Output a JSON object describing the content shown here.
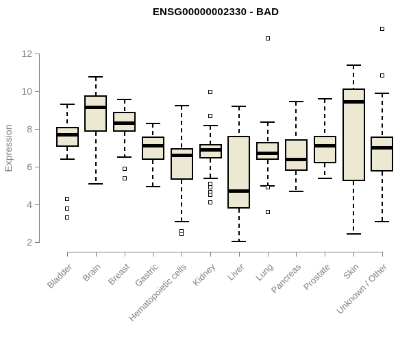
{
  "chart_data": {
    "type": "boxplot",
    "title": "ENSG00000002330 - BAD",
    "ylabel": "Expression",
    "xlabel": "",
    "y_ticks": [
      2,
      4,
      6,
      8,
      10,
      12
    ],
    "ylim": [
      2,
      13.4
    ],
    "grid": false,
    "legend": "none",
    "colors": {
      "box_fill": "#ECE8D1",
      "box_border": "#000000",
      "axis": "#7f7f7f",
      "title_text": "#000000",
      "background": "#ffffff"
    },
    "categories": [
      "Bladder",
      "Brain",
      "Breast",
      "Gastric",
      "Hematopoietic cells",
      "Kidney",
      "Liver",
      "Lung",
      "Pancreas",
      "Prostate",
      "Skin",
      "Unknown / Other"
    ],
    "boxes": [
      {
        "category": "Bladder",
        "whisker_low": 6.4,
        "q1": 7.05,
        "median": 7.7,
        "q3": 8.1,
        "whisker_high": 9.3,
        "outliers": [
          4.3,
          3.8,
          3.3
        ]
      },
      {
        "category": "Brain",
        "whisker_low": 5.1,
        "q1": 7.85,
        "median": 9.15,
        "q3": 9.8,
        "whisker_high": 10.75,
        "outliers": []
      },
      {
        "category": "Breast",
        "whisker_low": 6.5,
        "q1": 7.85,
        "median": 8.3,
        "q3": 8.9,
        "whisker_high": 9.55,
        "outliers": [
          5.9,
          5.4
        ]
      },
      {
        "category": "Gastric",
        "whisker_low": 4.95,
        "q1": 6.35,
        "median": 7.1,
        "q3": 7.6,
        "whisker_high": 8.3,
        "outliers": []
      },
      {
        "category": "Hematopoietic cells",
        "whisker_low": 3.1,
        "q1": 5.3,
        "median": 6.6,
        "q3": 7.0,
        "whisker_high": 9.25,
        "outliers": [
          2.6,
          2.45
        ]
      },
      {
        "category": "Kidney",
        "whisker_low": 5.4,
        "q1": 6.45,
        "median": 6.9,
        "q3": 7.2,
        "whisker_high": 8.2,
        "outliers": [
          9.95,
          8.7,
          5.1,
          4.9,
          4.65,
          4.5,
          4.1
        ]
      },
      {
        "category": "Liver",
        "whisker_low": 2.05,
        "q1": 3.8,
        "median": 4.7,
        "q3": 7.65,
        "whisker_high": 9.2,
        "outliers": []
      },
      {
        "category": "Lung",
        "whisker_low": 5.0,
        "q1": 6.35,
        "median": 6.7,
        "q3": 7.3,
        "whisker_high": 8.35,
        "outliers": [
          12.8,
          4.9,
          3.6
        ]
      },
      {
        "category": "Pancreas",
        "whisker_low": 4.7,
        "q1": 5.8,
        "median": 6.4,
        "q3": 7.45,
        "whisker_high": 9.45,
        "outliers": []
      },
      {
        "category": "Prostate",
        "whisker_low": 5.4,
        "q1": 6.2,
        "median": 7.1,
        "q3": 7.65,
        "whisker_high": 9.6,
        "outliers": []
      },
      {
        "category": "Skin",
        "whisker_low": 2.45,
        "q1": 5.25,
        "median": 9.45,
        "q3": 10.15,
        "whisker_high": 11.4,
        "outliers": []
      },
      {
        "category": "Unknown / Other",
        "whisker_low": 3.1,
        "q1": 5.75,
        "median": 7.0,
        "q3": 7.6,
        "whisker_high": 9.9,
        "outliers": [
          13.3,
          10.85
        ]
      }
    ]
  }
}
